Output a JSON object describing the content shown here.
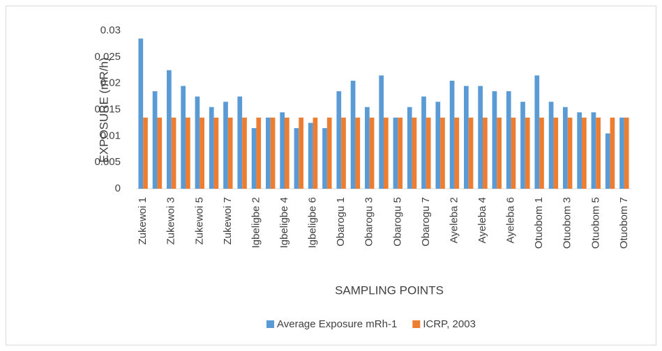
{
  "chart_data": {
    "type": "bar",
    "x_label": "SAMPLING POINTS",
    "y_label": "EXPOSURE (mR/h)",
    "categories": [
      "Zukewoi 1",
      null,
      "Zukewoi 3",
      null,
      "Zukewoi 5",
      null,
      "Zukewoi 7",
      null,
      "Igbeligbe 2",
      null,
      "Igbeligbe 4",
      null,
      "Igbeligbe 6",
      null,
      "Obarogu 1",
      null,
      "Obarogu 3",
      null,
      "Obarogu 5",
      null,
      "Obarogu 7",
      null,
      "Ayeleba 2",
      null,
      "Ayeleba 4",
      null,
      "Ayeleba 6",
      null,
      "Otuobom 1",
      null,
      "Otuobom 3",
      null,
      "Otuobom 5",
      null,
      "Otuobom 7"
    ],
    "series": [
      {
        "name": "Average Exposure mRh-1",
        "color": "#5b9bd5",
        "values": [
          0.0285,
          0.0185,
          0.0225,
          0.0195,
          0.0175,
          0.0155,
          0.0165,
          0.0175,
          0.0115,
          0.0135,
          0.0145,
          0.0115,
          0.0125,
          0.0115,
          0.0185,
          0.0205,
          0.0155,
          0.0215,
          0.0135,
          0.0155,
          0.0175,
          0.0165,
          0.0205,
          0.0195,
          0.0195,
          0.0185,
          0.0185,
          0.0165,
          0.0215,
          0.0165,
          0.0155,
          0.0145,
          0.0145,
          0.0105,
          0.0135
        ]
      },
      {
        "name": "ICRP, 2003",
        "color": "#ed7d31",
        "values": [
          0.0135,
          0.0135,
          0.0135,
          0.0135,
          0.0135,
          0.0135,
          0.0135,
          0.0135,
          0.0135,
          0.0135,
          0.0135,
          0.0135,
          0.0135,
          0.0135,
          0.0135,
          0.0135,
          0.0135,
          0.0135,
          0.0135,
          0.0135,
          0.0135,
          0.0135,
          0.0135,
          0.0135,
          0.0135,
          0.0135,
          0.0135,
          0.0135,
          0.0135,
          0.0135,
          0.0135,
          0.0135,
          0.0135,
          0.0135,
          0.0135
        ]
      }
    ],
    "ylim": [
      0,
      0.03
    ],
    "yticks": [
      0,
      0.005,
      0.01,
      0.015,
      0.02,
      0.025,
      0.03
    ],
    "grid": false,
    "legend": "bottom"
  }
}
